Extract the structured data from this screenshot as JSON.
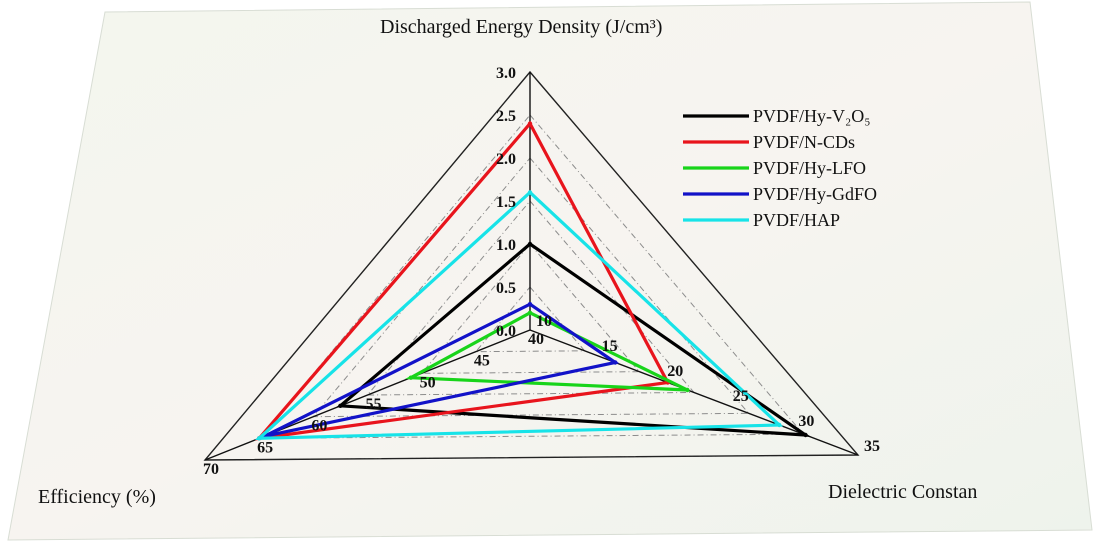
{
  "chart_data": {
    "type": "radar",
    "axes": [
      {
        "label": "Discharged Energy Density (J/cm³)",
        "ticks": [
          "0.0",
          "0.5",
          "1.0",
          "1.5",
          "2.0",
          "2.5",
          "3.0"
        ],
        "range": [
          0,
          3
        ]
      },
      {
        "label": "Dielectric Constan",
        "ticks": [
          "10",
          "15",
          "20",
          "25",
          "30",
          "35"
        ],
        "range": [
          10,
          35
        ]
      },
      {
        "label": "Efficiency (%)",
        "ticks": [
          "40",
          "45",
          "50",
          "55",
          "60",
          "65",
          "70"
        ],
        "range": [
          40,
          70
        ]
      }
    ],
    "series": [
      {
        "name": "PVDF/Hy-V₂O₅",
        "color": "#000000",
        "values": [
          1.0,
          31.0,
          57.5
        ]
      },
      {
        "name": "PVDF/N-CDs",
        "color": "#e8141c",
        "values": [
          2.4,
          20.5,
          65.0
        ]
      },
      {
        "name": "PVDF/Hy-LFO",
        "color": "#18d41a",
        "values": [
          0.2,
          22.0,
          51.0
        ]
      },
      {
        "name": "PVDF/Hy-GdFO",
        "color": "#1212c8",
        "values": [
          0.3,
          16.5,
          64.5
        ]
      },
      {
        "name": "PVDF/HAP",
        "color": "#17e3e8",
        "values": [
          1.6,
          29.0,
          65.0
        ]
      }
    ],
    "legend_position": "top-right",
    "grid": true
  }
}
